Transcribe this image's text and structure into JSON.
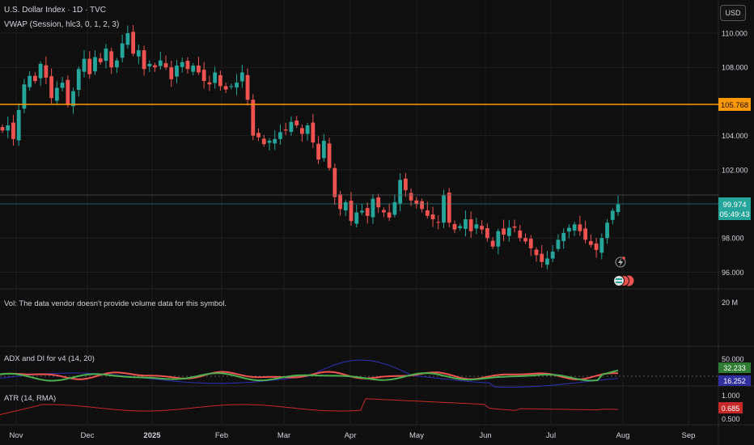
{
  "header": {
    "title": "U.S. Dollar Index · 1D · TVC",
    "indicator": "VWAP (Session, hlc3, 0, 1, 2, 3)",
    "currency_button": "USD"
  },
  "volume_pane": {
    "message": "Vol: The data vendor doesn't provide volume data for this symbol.",
    "axis_label": "20 M"
  },
  "adx_pane": {
    "title": "ADX and DI for v4 (14, 20)",
    "axis_label": "50.000",
    "value_green": "32.233",
    "value_blue": "16.252"
  },
  "atr_pane": {
    "title": "ATR (14, RMA)",
    "axis_top": "1.000",
    "axis_bottom": "0.500",
    "value": "0.685"
  },
  "x_axis": [
    "Nov",
    "Dec",
    "2025",
    "Feb",
    "Mar",
    "Apr",
    "May",
    "Jun",
    "Jul",
    "Aug",
    "Sep"
  ],
  "price_axis": [
    "110.000",
    "108.000",
    "104.000",
    "102.000",
    "98.000",
    "96.000"
  ],
  "price_tags": {
    "level_line": "105.768",
    "last_price": "99.974",
    "countdown": "05:49:43"
  },
  "colors": {
    "background": "#0f0f0f",
    "up": "#26a69a",
    "down": "#ef5350",
    "level_line": "#ff9800",
    "grid": "#1e1e1e",
    "adx_green": "#4caf50",
    "adx_blue": "#2f2fb8",
    "atr_red": "#c62828"
  },
  "icons": [
    "flash-icon",
    "dividend-markers-icon"
  ],
  "chart_data": {
    "type": "candlestick",
    "symbol": "U.S. Dollar Index",
    "interval": "1D",
    "ylim": [
      95,
      111
    ],
    "last": 99.974,
    "level": 105.768,
    "path": [
      104.3,
      104.6,
      103.8,
      105.5,
      107.0,
      107.5,
      107.2,
      108.2,
      107.4,
      106.2,
      106.8,
      107.1,
      105.8,
      106.6,
      107.9,
      108.5,
      107.6,
      108.6,
      108.3,
      109.1,
      108.0,
      108.4,
      109.4,
      110.0,
      108.8,
      109.0,
      107.9,
      108.2,
      108.0,
      108.4,
      108.0,
      107.3,
      108.1,
      108.3,
      107.9,
      108.1,
      107.7,
      107.2,
      107.0,
      107.7,
      106.9,
      106.7,
      106.9,
      107.1,
      107.7,
      106.1,
      104.0,
      103.9,
      103.5,
      103.7,
      103.8,
      104.2,
      104.3,
      104.8,
      104.6,
      104.1,
      104.6,
      103.6,
      102.6,
      103.7,
      102.1,
      100.4,
      99.7,
      100.1,
      99.0,
      99.5,
      99.6,
      99.3,
      100.3,
      99.8,
      99.5,
      99.2,
      100.1,
      101.4,
      100.8,
      100.2,
      100.0,
      99.7,
      99.3,
      99.1,
      98.9,
      100.5,
      98.9,
      98.5,
      98.7,
      99.1,
      98.4,
      98.8,
      98.5,
      98.0,
      97.5,
      98.4,
      98.2,
      98.6,
      98.6,
      98.0,
      97.8,
      97.4,
      97.0,
      96.6,
      96.8,
      97.2,
      97.9,
      98.3,
      98.6,
      98.8,
      98.4,
      97.9,
      97.6,
      97.3,
      98.0,
      98.9,
      99.6,
      99.97
    ],
    "adx": {
      "ylim": [
        0,
        60
      ],
      "green_last": 32.233,
      "blue_last": 16.252
    },
    "atr": {
      "ylim": [
        0.4,
        1.05
      ],
      "last": 0.685
    }
  }
}
